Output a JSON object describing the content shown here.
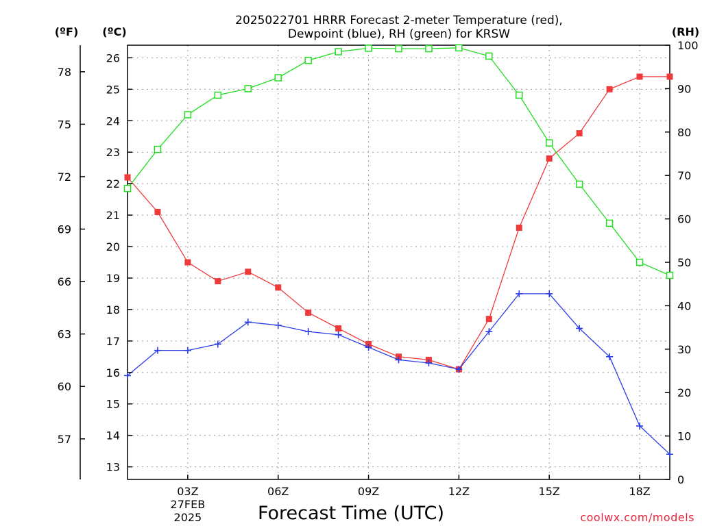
{
  "chart_data": {
    "type": "line",
    "title_lines": [
      "2025022701 HRRR Forecast 2-meter Temperature (red),",
      "Dewpoint (blue), RH (green) for KRSW"
    ],
    "xlabel": "Forecast Time (UTC)",
    "credit": "coolwx.com/models",
    "axes": {
      "fahrenheit": {
        "unit_label": "(ºF)",
        "ticks": [
          57,
          60,
          63,
          66,
          69,
          72,
          75,
          78
        ]
      },
      "celsius": {
        "unit_label": "(ºC)",
        "range": [
          12.6,
          26.4
        ],
        "ticks": [
          13,
          14,
          15,
          16,
          17,
          18,
          19,
          20,
          21,
          22,
          23,
          24,
          25,
          26
        ]
      },
      "rh": {
        "unit_label": "(RH)",
        "range": [
          0,
          100
        ],
        "ticks": [
          0,
          10,
          20,
          30,
          40,
          50,
          60,
          70,
          80,
          90,
          100
        ]
      }
    },
    "x": {
      "range_hours": [
        1,
        19
      ],
      "ticks": [
        {
          "hour": 3,
          "label": "03Z",
          "sub": [
            "27FEB",
            "2025"
          ]
        },
        {
          "hour": 6,
          "label": "06Z"
        },
        {
          "hour": 9,
          "label": "09Z"
        },
        {
          "hour": 12,
          "label": "12Z"
        },
        {
          "hour": 15,
          "label": "15Z"
        },
        {
          "hour": 18,
          "label": "18Z"
        }
      ]
    },
    "grid": true,
    "series": [
      {
        "key": "temperature",
        "axis": "celsius",
        "color": "#ee3a3a",
        "marker": "filled-square",
        "points": [
          [
            1,
            22.2
          ],
          [
            2,
            21.1
          ],
          [
            3,
            19.5
          ],
          [
            4,
            18.9
          ],
          [
            5,
            19.2
          ],
          [
            6,
            18.7
          ],
          [
            7,
            17.9
          ],
          [
            8,
            17.4
          ],
          [
            9,
            16.9
          ],
          [
            10,
            16.5
          ],
          [
            11,
            16.4
          ],
          [
            12,
            16.1
          ],
          [
            13,
            17.7
          ],
          [
            14,
            20.6
          ],
          [
            15,
            22.8
          ],
          [
            16,
            23.6
          ],
          [
            17,
            25.0
          ],
          [
            18,
            25.4
          ],
          [
            19,
            25.4
          ]
        ]
      },
      {
        "key": "dewpoint",
        "axis": "celsius",
        "color": "#2a3ce6",
        "marker": "plus",
        "points": [
          [
            1,
            15.9
          ],
          [
            2,
            16.7
          ],
          [
            3,
            16.7
          ],
          [
            4,
            16.9
          ],
          [
            5,
            17.6
          ],
          [
            6,
            17.5
          ],
          [
            7,
            17.3
          ],
          [
            8,
            17.2
          ],
          [
            9,
            16.8
          ],
          [
            10,
            16.4
          ],
          [
            11,
            16.3
          ],
          [
            12,
            16.1
          ],
          [
            13,
            17.3
          ],
          [
            14,
            18.5
          ],
          [
            15,
            18.5
          ],
          [
            16,
            17.4
          ],
          [
            17,
            16.5
          ],
          [
            18,
            14.3
          ],
          [
            19,
            13.4
          ]
        ]
      },
      {
        "key": "rh",
        "axis": "rh",
        "color": "#22dd22",
        "marker": "open-square",
        "points": [
          [
            1,
            67
          ],
          [
            2,
            76
          ],
          [
            3,
            84
          ],
          [
            4,
            88.5
          ],
          [
            5,
            90
          ],
          [
            6,
            92.5
          ],
          [
            7,
            96.5
          ],
          [
            8,
            98.5
          ],
          [
            9,
            99.3
          ],
          [
            10,
            99.2
          ],
          [
            11,
            99.2
          ],
          [
            12,
            99.4
          ],
          [
            13,
            97.5
          ],
          [
            14,
            88.5
          ],
          [
            15,
            77.5
          ],
          [
            16,
            68
          ],
          [
            17,
            59
          ],
          [
            18,
            50
          ],
          [
            19,
            47
          ]
        ]
      }
    ]
  }
}
